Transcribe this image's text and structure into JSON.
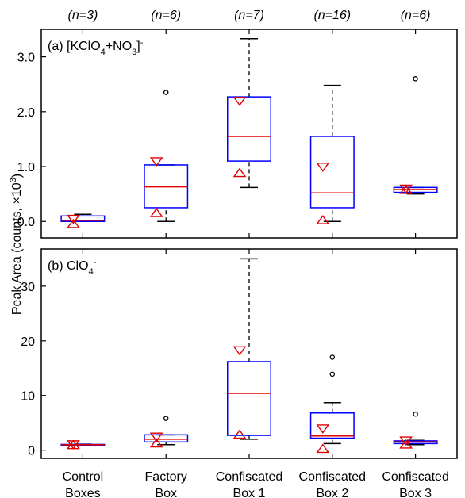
{
  "chart_data": {
    "type": "box",
    "ylabel": [
      {
        "text": "Peak Area (counts, ×10"
      },
      {
        "text": "3",
        "shift": "super"
      },
      {
        "text": ")"
      }
    ],
    "n_labels": [
      "(n=3)",
      "(n=6)",
      "(n=7)",
      "(n=16)",
      "(n=6)"
    ],
    "categories": [
      [
        "Control",
        "Boxes"
      ],
      [
        "Factory",
        "Box"
      ],
      [
        "Confiscated",
        "Box 1"
      ],
      [
        "Confiscated",
        "Box 2"
      ],
      [
        "Confiscated",
        "Box 3"
      ]
    ],
    "box_color": "#0000ff",
    "median_color": "#e00000",
    "marker_color": "#e00000",
    "panels": [
      {
        "label": [
          {
            "text": "(a) [KClO"
          },
          {
            "text": "4",
            "shift": "sub"
          },
          {
            "text": "+NO"
          },
          {
            "text": "3",
            "shift": "sub"
          },
          {
            "text": "]"
          },
          {
            "text": "-",
            "shift": "super"
          }
        ],
        "ylim": [
          -0.3,
          3.5
        ],
        "yticks": [
          {
            "value": 0,
            "label": "0.0"
          },
          {
            "value": 1,
            "label": "1.0"
          },
          {
            "value": 2,
            "label": "2.0"
          },
          {
            "value": 3,
            "label": "3.0"
          }
        ],
        "boxes": [
          {
            "whislo": 0.0,
            "q1": 0.0,
            "med": 0.02,
            "q3": 0.1,
            "whishi": 0.13,
            "outliers": [],
            "down_triangle": 0.05,
            "up_triangle": -0.05
          },
          {
            "whislo": 0.0,
            "q1": 0.25,
            "med": 0.63,
            "q3": 1.03,
            "whishi": 1.03,
            "outliers": [
              2.35
            ],
            "down_triangle": 1.1,
            "up_triangle": 0.15
          },
          {
            "whislo": 0.62,
            "q1": 1.1,
            "med": 1.55,
            "q3": 2.27,
            "whishi": 3.33,
            "outliers": [],
            "down_triangle": 2.2,
            "up_triangle": 0.88
          },
          {
            "whislo": 0.0,
            "q1": 0.25,
            "med": 0.52,
            "q3": 1.55,
            "whishi": 2.48,
            "outliers": [],
            "down_triangle": 1.0,
            "up_triangle": 0.02
          },
          {
            "whislo": 0.5,
            "q1": 0.53,
            "med": 0.58,
            "q3": 0.62,
            "whishi": 0.62,
            "outliers": [
              2.6
            ],
            "down_triangle": 0.6,
            "up_triangle": 0.57
          }
        ]
      },
      {
        "label": [
          {
            "text": "(b) ClO"
          },
          {
            "text": "4",
            "shift": "sub"
          },
          {
            "text": "-",
            "shift": "super"
          }
        ],
        "ylim": [
          -1.5,
          36.8
        ],
        "yticks": [
          0,
          10,
          20,
          30
        ],
        "boxes": [
          {
            "whislo": 0.9,
            "q1": 0.95,
            "med": 1.0,
            "q3": 1.05,
            "whishi": 1.1,
            "outliers": [],
            "down_triangle": 1.1,
            "up_triangle": 0.9
          },
          {
            "whislo": 1.0,
            "q1": 1.5,
            "med": 2.0,
            "q3": 2.8,
            "whishi": 2.8,
            "outliers": [
              5.8
            ],
            "down_triangle": 2.5,
            "up_triangle": 1.2
          },
          {
            "whislo": 2.0,
            "q1": 2.7,
            "med": 10.4,
            "q3": 16.2,
            "whishi": 35.0,
            "outliers": [],
            "down_triangle": 18.3,
            "up_triangle": 2.8
          },
          {
            "whislo": 1.2,
            "q1": 2.2,
            "med": 2.6,
            "q3": 6.8,
            "whishi": 8.7,
            "outliers": [
              13.9,
              17.0
            ],
            "down_triangle": 4.0,
            "up_triangle": 0.2
          },
          {
            "whislo": 1.0,
            "q1": 1.2,
            "med": 1.5,
            "q3": 1.7,
            "whishi": 1.8,
            "outliers": [
              6.6
            ],
            "down_triangle": 1.8,
            "up_triangle": 1.0
          }
        ]
      }
    ]
  }
}
